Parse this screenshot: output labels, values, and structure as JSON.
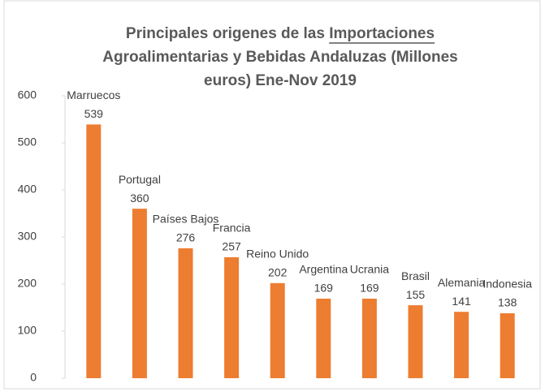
{
  "chart_data": {
    "type": "bar",
    "title": [
      "Principales origenes de las Importaciones",
      "Agroalimentarias  y Bebidas Andaluzas (Millones",
      "euros) Ene-Nov 2019"
    ],
    "categories": [
      "Marruecos",
      "Portugal",
      "Países Bajos",
      "Francia",
      "Reino Unido",
      "Argentina",
      "Ucrania",
      "Brasil",
      "Alemania",
      "Indonesia"
    ],
    "values": [
      539,
      360,
      276,
      257,
      202,
      169,
      169,
      155,
      141,
      138
    ],
    "color": "#ed7d31",
    "ylim": [
      0,
      600
    ],
    "yticks": [
      0,
      100,
      200,
      300,
      400,
      500,
      600
    ],
    "grid": false
  }
}
